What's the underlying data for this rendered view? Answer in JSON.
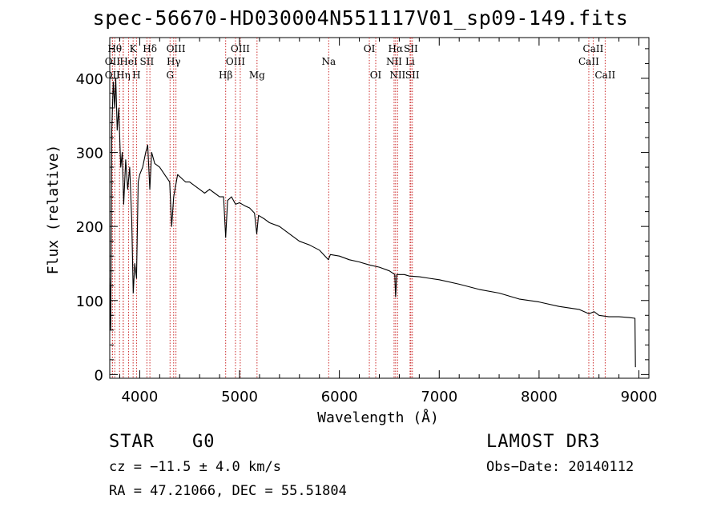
{
  "chart_data": {
    "type": "line",
    "title": "spec-56670-HD030004N551117V01_sp09-149.fits",
    "xlabel": "Wavelength (Å)",
    "ylabel": "Flux (relative)",
    "xlim": [
      3700,
      9100
    ],
    "ylim": [
      -5,
      455
    ],
    "xticks": [
      4000,
      5000,
      6000,
      7000,
      8000,
      9000
    ],
    "yticks": [
      0,
      100,
      200,
      300,
      400
    ],
    "series": [
      {
        "name": "spectrum",
        "color": "#000000",
        "points": [
          [
            3700,
            130
          ],
          [
            3710,
            60
          ],
          [
            3720,
            330
          ],
          [
            3735,
            395
          ],
          [
            3750,
            360
          ],
          [
            3760,
            400
          ],
          [
            3775,
            330
          ],
          [
            3790,
            360
          ],
          [
            3810,
            280
          ],
          [
            3825,
            300
          ],
          [
            3840,
            230
          ],
          [
            3860,
            290
          ],
          [
            3880,
            250
          ],
          [
            3900,
            280
          ],
          [
            3920,
            210
          ],
          [
            3935,
            110
          ],
          [
            3950,
            150
          ],
          [
            3968,
            130
          ],
          [
            3985,
            260
          ],
          [
            4000,
            270
          ],
          [
            4030,
            280
          ],
          [
            4060,
            300
          ],
          [
            4080,
            310
          ],
          [
            4101,
            250
          ],
          [
            4120,
            300
          ],
          [
            4150,
            285
          ],
          [
            4200,
            280
          ],
          [
            4250,
            270
          ],
          [
            4300,
            260
          ],
          [
            4320,
            200
          ],
          [
            4340,
            240
          ],
          [
            4380,
            270
          ],
          [
            4420,
            265
          ],
          [
            4460,
            260
          ],
          [
            4500,
            260
          ],
          [
            4550,
            255
          ],
          [
            4600,
            250
          ],
          [
            4650,
            245
          ],
          [
            4700,
            250
          ],
          [
            4750,
            245
          ],
          [
            4800,
            240
          ],
          [
            4840,
            240
          ],
          [
            4861,
            185
          ],
          [
            4880,
            235
          ],
          [
            4920,
            240
          ],
          [
            4960,
            230
          ],
          [
            5000,
            232
          ],
          [
            5050,
            228
          ],
          [
            5100,
            225
          ],
          [
            5150,
            218
          ],
          [
            5172,
            190
          ],
          [
            5190,
            215
          ],
          [
            5250,
            210
          ],
          [
            5300,
            205
          ],
          [
            5400,
            200
          ],
          [
            5500,
            190
          ],
          [
            5600,
            180
          ],
          [
            5700,
            175
          ],
          [
            5800,
            168
          ],
          [
            5890,
            155
          ],
          [
            5910,
            162
          ],
          [
            6000,
            160
          ],
          [
            6100,
            155
          ],
          [
            6200,
            152
          ],
          [
            6300,
            148
          ],
          [
            6400,
            145
          ],
          [
            6500,
            140
          ],
          [
            6555,
            135
          ],
          [
            6563,
            105
          ],
          [
            6575,
            135
          ],
          [
            6650,
            135
          ],
          [
            6700,
            133
          ],
          [
            6800,
            132
          ],
          [
            6900,
            130
          ],
          [
            7000,
            128
          ],
          [
            7200,
            122
          ],
          [
            7400,
            115
          ],
          [
            7600,
            110
          ],
          [
            7800,
            102
          ],
          [
            8000,
            98
          ],
          [
            8200,
            92
          ],
          [
            8400,
            88
          ],
          [
            8500,
            82
          ],
          [
            8550,
            85
          ],
          [
            8600,
            80
          ],
          [
            8700,
            78
          ],
          [
            8800,
            78
          ],
          [
            8900,
            77
          ],
          [
            8960,
            76
          ],
          [
            8965,
            10
          ]
        ]
      }
    ],
    "line_markers": [
      {
        "wavelength": 3727,
        "label": "OII",
        "row": 2
      },
      {
        "wavelength": 3727,
        "label": "OII",
        "row": 3
      },
      {
        "wavelength": 3750,
        "label": "Hθ",
        "row": 1
      },
      {
        "wavelength": 3798,
        "label": "",
        "row": 0
      },
      {
        "wavelength": 3835,
        "label": "",
        "row": 0
      },
      {
        "wavelength": 3835,
        "label": "Hη",
        "row": 3
      },
      {
        "wavelength": 3889,
        "label": "HeI",
        "row": 2
      },
      {
        "wavelength": 3934,
        "label": "K",
        "row": 1
      },
      {
        "wavelength": 3968,
        "label": "H",
        "row": 3
      },
      {
        "wavelength": 4072,
        "label": "SII",
        "row": 2
      },
      {
        "wavelength": 4102,
        "label": "Hδ",
        "row": 1
      },
      {
        "wavelength": 4304,
        "label": "G",
        "row": 3
      },
      {
        "wavelength": 4340,
        "label": "Hγ",
        "row": 2
      },
      {
        "wavelength": 4363,
        "label": "OIII",
        "row": 1
      },
      {
        "wavelength": 4861,
        "label": "Hβ",
        "row": 3
      },
      {
        "wavelength": 4959,
        "label": "OIII",
        "row": 2
      },
      {
        "wavelength": 5007,
        "label": "OIII",
        "row": 1
      },
      {
        "wavelength": 5175,
        "label": "Mg",
        "row": 3
      },
      {
        "wavelength": 5893,
        "label": "Na",
        "row": 2
      },
      {
        "wavelength": 6300,
        "label": "OI",
        "row": 1
      },
      {
        "wavelength": 6364,
        "label": "OI",
        "row": 3
      },
      {
        "wavelength": 6548,
        "label": "NII",
        "row": 2
      },
      {
        "wavelength": 6563,
        "label": "Hα",
        "row": 1
      },
      {
        "wavelength": 6583,
        "label": "NII",
        "row": 3
      },
      {
        "wavelength": 6708,
        "label": "Li",
        "row": 2
      },
      {
        "wavelength": 6716,
        "label": "SII",
        "row": 1
      },
      {
        "wavelength": 6731,
        "label": "SII",
        "row": 3
      },
      {
        "wavelength": 8498,
        "label": "CaII",
        "row": 2
      },
      {
        "wavelength": 8542,
        "label": "CaII",
        "row": 1
      },
      {
        "wavelength": 8662,
        "label": "CaII",
        "row": 3
      }
    ],
    "colors": {
      "spectrum": "#000000",
      "markers": "#cc2a2a",
      "axes": "#000000"
    }
  },
  "info": {
    "object_class": "STAR",
    "subclass": "G0",
    "survey": "LAMOST DR3",
    "redshift_text": "cz = −11.5 ± 4.0 km/s",
    "obs_date": "Obs−Date: 20140112",
    "coords": "RA =  47.21066, DEC =  55.51804"
  }
}
